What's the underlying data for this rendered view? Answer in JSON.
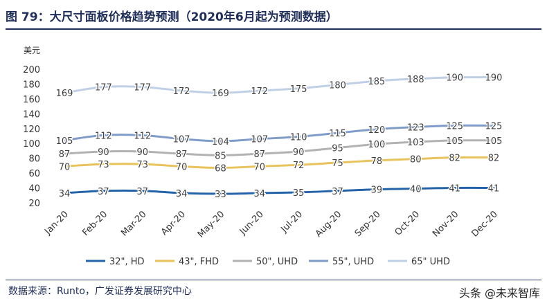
{
  "title": "图 79：大尺寸面板价格趋势预测（2020年6月起为预测数据）",
  "source": "数据来源：Runto，广发证券发展研究中心",
  "watermark": "头条 @未来智库",
  "chart_data": {
    "type": "line",
    "ylabel": "美元",
    "ylim": [
      20,
      200
    ],
    "yticks": [
      20,
      40,
      60,
      80,
      100,
      120,
      140,
      160,
      180,
      200
    ],
    "grid": false,
    "legend": "bottom",
    "categories": [
      "Jan-20",
      "Feb-20",
      "Mar-20",
      "Apr-20",
      "May-20",
      "Jun-20",
      "Jul-20",
      "Aug-20",
      "Sep-20",
      "Oct-20",
      "Nov-20",
      "Dec-20"
    ],
    "series": [
      {
        "name": "32\", HD",
        "color": "#2563a8",
        "values": [
          34,
          37,
          37,
          34,
          33,
          34,
          35,
          37,
          39,
          40,
          41,
          41
        ]
      },
      {
        "name": "43\", FHD",
        "color": "#e8c25a",
        "values": [
          70,
          73,
          73,
          70,
          68,
          70,
          72,
          75,
          78,
          80,
          82,
          82
        ]
      },
      {
        "name": "50\", UHD",
        "color": "#b2b2b2",
        "values": [
          87,
          90,
          90,
          87,
          85,
          87,
          90,
          95,
          100,
          103,
          105,
          105
        ]
      },
      {
        "name": "55\", UHD",
        "color": "#7f9cc9",
        "values": [
          105,
          112,
          112,
          107,
          104,
          107,
          110,
          115,
          120,
          123,
          125,
          125
        ]
      },
      {
        "name": "65\" UHD",
        "color": "#bfd0e6",
        "values": [
          169,
          177,
          177,
          172,
          169,
          172,
          175,
          180,
          185,
          188,
          190,
          190
        ]
      }
    ]
  }
}
